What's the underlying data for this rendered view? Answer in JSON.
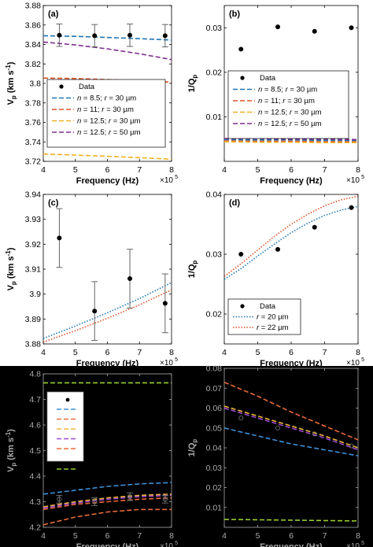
{
  "chart_data": [
    {
      "id": "a",
      "panel_label": "(a)",
      "type": "scatter",
      "title": "",
      "xlabel": "Frequency (Hz)",
      "ylabel": "V_p (km s^-1)",
      "ylabel_parts": {
        "main": "V",
        "sub": "p",
        "rest": " (km s",
        "sup": "-1",
        "end": ")"
      },
      "x_exponent_label": "×10",
      "x_exponent": "5",
      "xlim": [
        4,
        8
      ],
      "ylim": [
        3.72,
        3.88
      ],
      "xticks": [
        "4",
        "5",
        "6",
        "7",
        "8"
      ],
      "yticks": [
        "3.72",
        "3.74",
        "3.76",
        "3.78",
        "3.8",
        "3.82",
        "3.84",
        "3.86",
        "3.88"
      ],
      "ytick_values": [
        3.72,
        3.74,
        3.76,
        3.78,
        3.8,
        3.82,
        3.84,
        3.86,
        3.88
      ],
      "legend_position": "center",
      "data_points": {
        "name": "Data",
        "x": [
          4.5,
          5.6,
          6.7,
          7.8
        ],
        "y": [
          3.8495,
          3.849,
          3.8495,
          3.849
        ],
        "err": [
          0.0115,
          0.0115,
          0.0115,
          0.0115
        ]
      },
      "series": [
        {
          "name": "n = 8.5; r = 30 µm",
          "legend": {
            "n": "8.5",
            "r": "30"
          },
          "color": "#1f77b4",
          "x": [
            4,
            5,
            6,
            7,
            8
          ],
          "y": [
            3.849,
            3.8483,
            3.8472,
            3.846,
            3.8445
          ]
        },
        {
          "name": "n = 11; r = 30 µm",
          "legend": {
            "n": "11",
            "r": "30"
          },
          "color": "#e0542a",
          "x": [
            4,
            5,
            6,
            7,
            8
          ],
          "y": [
            3.8055,
            3.805,
            3.804,
            3.8028,
            3.8013
          ]
        },
        {
          "name": "n = 12.5; r = 30 µm",
          "legend": {
            "n": "12.5",
            "r": "30"
          },
          "color": "#edb120",
          "x": [
            4,
            5,
            6,
            7,
            8
          ],
          "y": [
            3.7275,
            3.7265,
            3.7252,
            3.7238,
            3.7222
          ]
        },
        {
          "name": "n = 12.5; r = 50 µm",
          "legend": {
            "n": "12.5",
            "r": "50"
          },
          "color": "#7e2f8e",
          "x": [
            4,
            5,
            6,
            7,
            8
          ],
          "y": [
            3.8425,
            3.8395,
            3.8355,
            3.8305,
            3.8245
          ]
        }
      ]
    },
    {
      "id": "b",
      "panel_label": "(b)",
      "type": "scatter",
      "title": "",
      "xlabel": "Frequency (Hz)",
      "ylabel": "1/Q_p",
      "ylabel_parts": {
        "main": "1/Q",
        "sub": "p",
        "rest": "",
        "sup": "",
        "end": ""
      },
      "x_exponent_label": "×10",
      "x_exponent": "5",
      "xlim": [
        4,
        8
      ],
      "ylim": [
        0,
        0.035
      ],
      "xticks": [
        "4",
        "5",
        "6",
        "7",
        "8"
      ],
      "yticks": [
        "0.01",
        "0.02",
        "0.03"
      ],
      "ytick_values": [
        0.01,
        0.02,
        0.03
      ],
      "legend_position": "center",
      "data_points": {
        "name": "Data",
        "x": [
          4.5,
          5.6,
          6.7,
          7.8
        ],
        "y": [
          0.0252,
          0.0302,
          0.0292,
          0.03
        ],
        "err": null
      },
      "series": [
        {
          "name": "n = 8.5; r = 30 µm",
          "legend": {
            "n": "8.5",
            "r": "30"
          },
          "color": "#1f77b4",
          "x": [
            4,
            5,
            6,
            7,
            8
          ],
          "y": [
            0.0049,
            0.0048,
            0.0048,
            0.0047,
            0.0047
          ]
        },
        {
          "name": "n = 11; r = 30 µm",
          "legend": {
            "n": "11",
            "r": "30"
          },
          "color": "#e0542a",
          "x": [
            4,
            5,
            6,
            7,
            8
          ],
          "y": [
            0.0046,
            0.0045,
            0.0045,
            0.0044,
            0.0044
          ]
        },
        {
          "name": "n = 12.5; r = 30 µm",
          "legend": {
            "n": "12.5",
            "r": "30"
          },
          "color": "#edb120",
          "x": [
            4,
            5,
            6,
            7,
            8
          ],
          "y": [
            0.0044,
            0.0043,
            0.0043,
            0.0042,
            0.0042
          ]
        },
        {
          "name": "n = 12.5; r = 50 µm",
          "legend": {
            "n": "12.5",
            "r": "50"
          },
          "color": "#7e2f8e",
          "x": [
            4,
            5,
            6,
            7,
            8
          ],
          "y": [
            0.0051,
            0.0051,
            0.005,
            0.005,
            0.0049
          ]
        }
      ]
    },
    {
      "id": "c",
      "panel_label": "(c)",
      "type": "scatter",
      "title": "",
      "xlabel": "Frequency (Hz)",
      "ylabel": "V_p (km s^-1)",
      "ylabel_parts": {
        "main": "V",
        "sub": "p",
        "rest": " (km s",
        "sup": "-1",
        "end": ")"
      },
      "x_exponent_label": "×10",
      "x_exponent": "5",
      "xlim": [
        4,
        8
      ],
      "ylim": [
        3.88,
        3.94
      ],
      "xticks": [
        "4",
        "5",
        "6",
        "7",
        "8"
      ],
      "yticks": [
        "3.88",
        "3.89",
        "3.9",
        "3.91",
        "3.92",
        "3.93",
        "3.94"
      ],
      "ytick_values": [
        3.88,
        3.89,
        3.9,
        3.91,
        3.92,
        3.93,
        3.94
      ],
      "legend_position": "none",
      "data_points": {
        "name": "Data",
        "x": [
          4.5,
          5.6,
          6.7,
          7.8
        ],
        "y": [
          3.9225,
          3.8932,
          3.9062,
          3.8963
        ],
        "err": [
          0.0118,
          0.0118,
          0.0118,
          0.0118
        ]
      },
      "series": [
        {
          "name": "r = 20 µm",
          "color": "#1f77b4",
          "x": [
            4,
            5,
            6,
            7,
            8
          ],
          "y": [
            3.8822,
            3.8872,
            3.8925,
            3.8982,
            3.9046
          ]
        },
        {
          "name": "r = 22 µm",
          "color": "#e0542a",
          "x": [
            4,
            5,
            6,
            7,
            8
          ],
          "y": [
            3.8808,
            3.8853,
            3.8903,
            3.8957,
            3.9017
          ]
        }
      ]
    },
    {
      "id": "d",
      "panel_label": "(d)",
      "type": "scatter",
      "title": "",
      "xlabel": "Frequency (Hz)",
      "ylabel": "1/Q_p",
      "ylabel_parts": {
        "main": "1/Q",
        "sub": "p",
        "rest": "",
        "sup": "",
        "end": ""
      },
      "x_exponent_label": "×10",
      "x_exponent": "5",
      "xlim": [
        4,
        8
      ],
      "ylim": [
        0.015,
        0.04
      ],
      "xticks": [
        "4",
        "5",
        "6",
        "7",
        "8"
      ],
      "yticks": [
        "0.02",
        "0.03",
        "0.04"
      ],
      "ytick_values": [
        0.02,
        0.03,
        0.04
      ],
      "legend_position": "bottom-left",
      "data_points": {
        "name": "Data",
        "x": [
          4.5,
          5.6,
          6.7,
          7.8
        ],
        "y": [
          0.03,
          0.0308,
          0.0345,
          0.0378
        ],
        "err": null
      },
      "series": [
        {
          "name": "r = 20 µm",
          "legend": {
            "r": "20"
          },
          "color": "#1f77b4",
          "x": [
            4,
            4.5,
            5,
            5.5,
            6,
            6.5,
            7,
            7.5,
            8
          ],
          "y": [
            0.0258,
            0.0276,
            0.0297,
            0.0317,
            0.0336,
            0.0352,
            0.0365,
            0.0374,
            0.038
          ]
        },
        {
          "name": "r = 22 µm",
          "legend": {
            "r": "22"
          },
          "color": "#e0542a",
          "x": [
            4,
            4.5,
            5,
            5.5,
            6,
            6.5,
            7,
            7.5,
            8
          ],
          "y": [
            0.0263,
            0.0284,
            0.0307,
            0.033,
            0.035,
            0.0367,
            0.0381,
            0.0391,
            0.0397
          ]
        }
      ]
    },
    {
      "id": "e",
      "panel_label": "",
      "type": "scatter",
      "title": "",
      "xlabel": "Frequency (Hz)",
      "ylabel": "V_p (km s^-1)",
      "ylabel_parts": {
        "main": "V",
        "sub": "p",
        "rest": " (km s",
        "sup": "-1",
        "end": ")"
      },
      "x_exponent_label": "×10",
      "x_exponent": "5",
      "xlim": [
        4,
        8
      ],
      "ylim": [
        4.2,
        4.8
      ],
      "xticks": [
        "4",
        "5",
        "6",
        "7",
        "8"
      ],
      "yticks": [
        "4.2",
        "4.3",
        "4.4",
        "4.5",
        "4.6",
        "4.7",
        "4.8"
      ],
      "ytick_values": [
        4.2,
        4.3,
        4.4,
        4.5,
        4.6,
        4.7,
        4.8
      ],
      "legend_position": "top-left",
      "data_points": {
        "name": "",
        "x": [
          4.5,
          5.6,
          6.7,
          7.8
        ],
        "y": [
          4.31,
          4.3,
          4.32,
          4.31
        ],
        "err": [
          0.015,
          0.015,
          0.015,
          0.015
        ]
      },
      "series": [
        {
          "name": "",
          "color": "#3d8fd6",
          "x": [
            4,
            5,
            6,
            7,
            8
          ],
          "y": [
            4.33,
            4.345,
            4.36,
            4.37,
            4.375
          ]
        },
        {
          "name": "",
          "color": "#e86a3a",
          "x": [
            4,
            5,
            6,
            7,
            8
          ],
          "y": [
            4.27,
            4.29,
            4.3,
            4.31,
            4.315
          ]
        },
        {
          "name": "",
          "color": "#f0b53a",
          "x": [
            4,
            5,
            6,
            7,
            8
          ],
          "y": [
            4.28,
            4.3,
            4.315,
            4.325,
            4.33
          ]
        },
        {
          "name": "",
          "color": "#a04ad0",
          "x": [
            4,
            5,
            6,
            7,
            8
          ],
          "y": [
            4.275,
            4.295,
            4.31,
            4.32,
            4.325
          ]
        },
        {
          "name": "",
          "color": "#e86a3a",
          "x": [
            4,
            5,
            6,
            7,
            8
          ],
          "y": [
            4.21,
            4.24,
            4.26,
            4.27,
            4.27
          ]
        },
        {
          "name": "",
          "color": "#9acd32",
          "x": [
            4,
            5,
            6,
            7,
            8
          ],
          "y": [
            4.765,
            4.765,
            4.765,
            4.765,
            4.765
          ]
        }
      ]
    },
    {
      "id": "f",
      "panel_label": "",
      "type": "scatter",
      "title": "",
      "xlabel": "Frequency (Hz)",
      "ylabel": "1/Q_p",
      "ylabel_parts": {
        "main": "1/Q",
        "sub": "p",
        "rest": "",
        "sup": "",
        "end": ""
      },
      "x_exponent_label": "×10",
      "x_exponent": "5",
      "xlim": [
        4,
        8
      ],
      "ylim": [
        0,
        0.08
      ],
      "xticks": [
        "4",
        "5",
        "6",
        "7",
        "8"
      ],
      "yticks": [
        "0.01",
        "0.02",
        "0.03",
        "0.04",
        "0.05",
        "0.06",
        "0.07",
        "0.08"
      ],
      "ytick_values": [
        0.01,
        0.02,
        0.03,
        0.04,
        0.05,
        0.06,
        0.07,
        0.08
      ],
      "legend_position": "none",
      "data_points": {
        "name": "",
        "x": [
          4.5,
          5.6,
          6.7,
          7.8
        ],
        "y": [
          0.055,
          0.05,
          0.047,
          0.041
        ],
        "err": null
      },
      "series": [
        {
          "name": "",
          "color": "#e86a3a",
          "x": [
            4,
            5,
            6,
            7,
            8
          ],
          "y": [
            0.073,
            0.066,
            0.058,
            0.051,
            0.044
          ]
        },
        {
          "name": "",
          "color": "#f0b53a",
          "x": [
            4,
            5,
            6,
            7,
            8
          ],
          "y": [
            0.061,
            0.056,
            0.051,
            0.046,
            0.04
          ]
        },
        {
          "name": "",
          "color": "#a04ad0",
          "x": [
            4,
            5,
            6,
            7,
            8
          ],
          "y": [
            0.06,
            0.055,
            0.05,
            0.045,
            0.039
          ]
        },
        {
          "name": "",
          "color": "#3d8fd6",
          "x": [
            4,
            5,
            6,
            7,
            8
          ],
          "y": [
            0.05,
            0.046,
            0.042,
            0.039,
            0.036
          ]
        },
        {
          "name": "",
          "color": "#9acd32",
          "x": [
            4,
            5,
            6,
            7,
            8
          ],
          "y": [
            0.004,
            0.0038,
            0.0036,
            0.0034,
            0.0032
          ]
        }
      ]
    }
  ]
}
